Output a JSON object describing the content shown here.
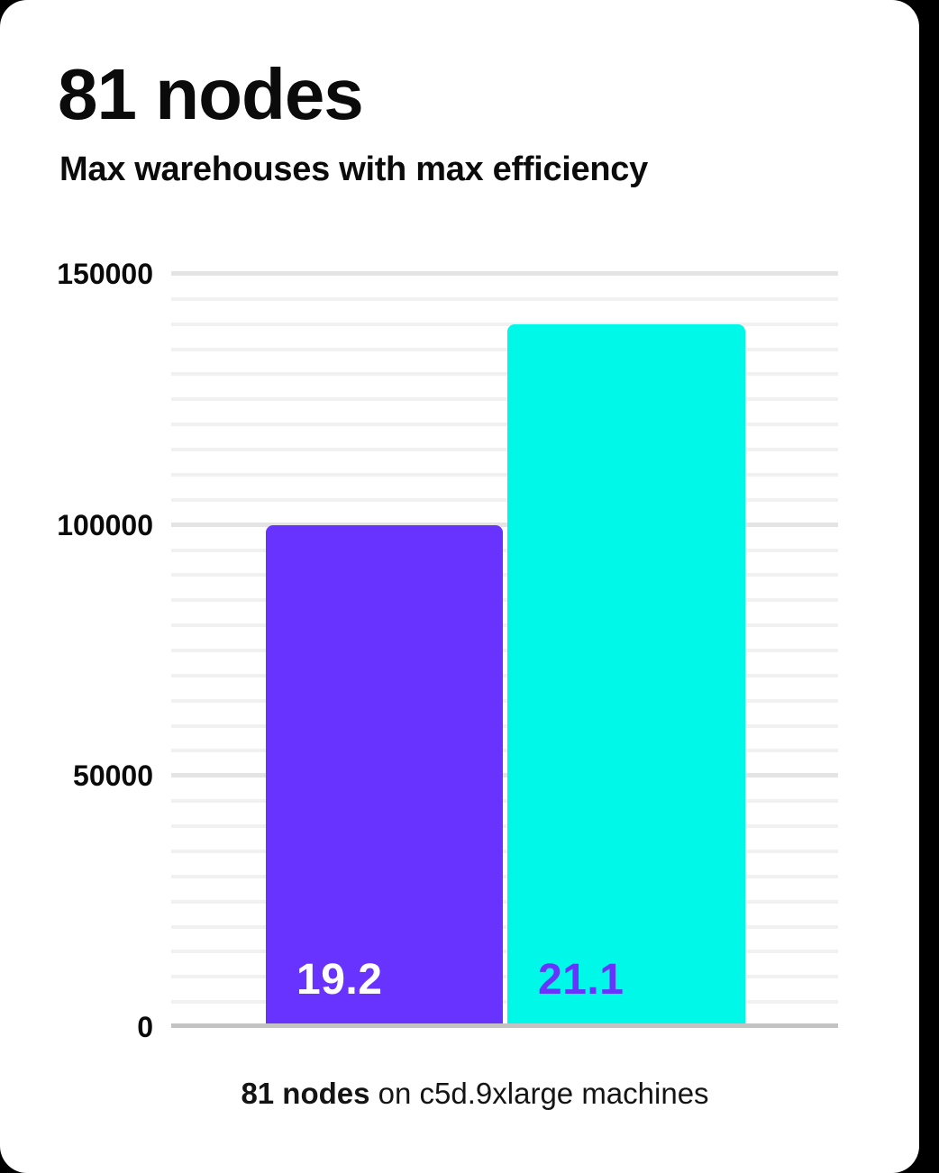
{
  "header": {
    "title": "81 nodes",
    "subtitle": "Max warehouses with max efficiency"
  },
  "caption": {
    "bold": "81 nodes",
    "rest": " on c5d.9xlarge machines"
  },
  "chart_data": {
    "type": "bar",
    "title": "81 nodes",
    "subtitle": "Max warehouses with max efficiency",
    "caption": "81 nodes on c5d.9xlarge machines",
    "categories": [
      "19.2",
      "21.1"
    ],
    "bars": [
      {
        "label": "19.2",
        "value": 100000,
        "color": "#6933ff",
        "label_color": "#ffffff"
      },
      {
        "label": "21.1",
        "value": 140000,
        "color": "#00f8e8",
        "label_color": "#6933ff"
      }
    ],
    "ylim": [
      0,
      150000
    ],
    "yticks": [
      {
        "value": 0,
        "label": "0"
      },
      {
        "value": 50000,
        "label": "50000"
      },
      {
        "value": 100000,
        "label": "100000"
      },
      {
        "value": 150000,
        "label": "150000"
      }
    ],
    "minor_gridline_step": 5000,
    "major_gridline_step": 50000,
    "grid": true,
    "legend": false,
    "xlabel": "",
    "ylabel": ""
  }
}
